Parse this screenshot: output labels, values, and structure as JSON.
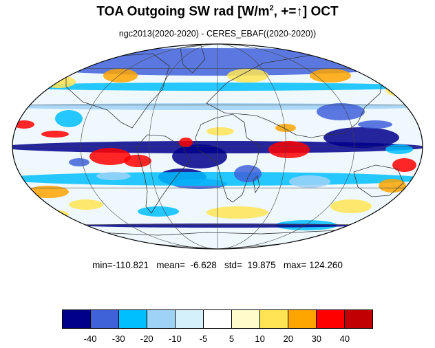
{
  "title": {
    "prefix": "TOA Outgoing SW rad [W/m",
    "superscript": "2",
    "suffix": ", +=",
    "arrow": "↑",
    "end": "] OCT"
  },
  "subtitle": "ngc2013(2020-2020) - CERES_EBAF((2020-2020))",
  "stats": {
    "text": "min=-110.821   mean=  -6.628   std=  19.875   max= 124.260",
    "min": -110.821,
    "mean": -6.628,
    "std": 19.875,
    "max": 124.26
  },
  "map": {
    "projection": "mollweide",
    "graticule_lon_step": 60,
    "graticule_lat_step": 30,
    "field": "difference of TOA outgoing shortwave radiation"
  },
  "colorbar": {
    "colors": [
      "#00008b",
      "#3f62d9",
      "#00bfff",
      "#9fd2f7",
      "#d4f0fb",
      "#ffffff",
      "#fffbcb",
      "#ffe554",
      "#ffa500",
      "#ff0000",
      "#c00000"
    ],
    "labels": [
      "-40",
      "-30",
      "-20",
      "-10",
      "-5",
      "5",
      "10",
      "20",
      "30",
      "40"
    ],
    "levels": [
      -40,
      -30,
      -20,
      -10,
      -5,
      5,
      10,
      20,
      30,
      40
    ]
  }
}
